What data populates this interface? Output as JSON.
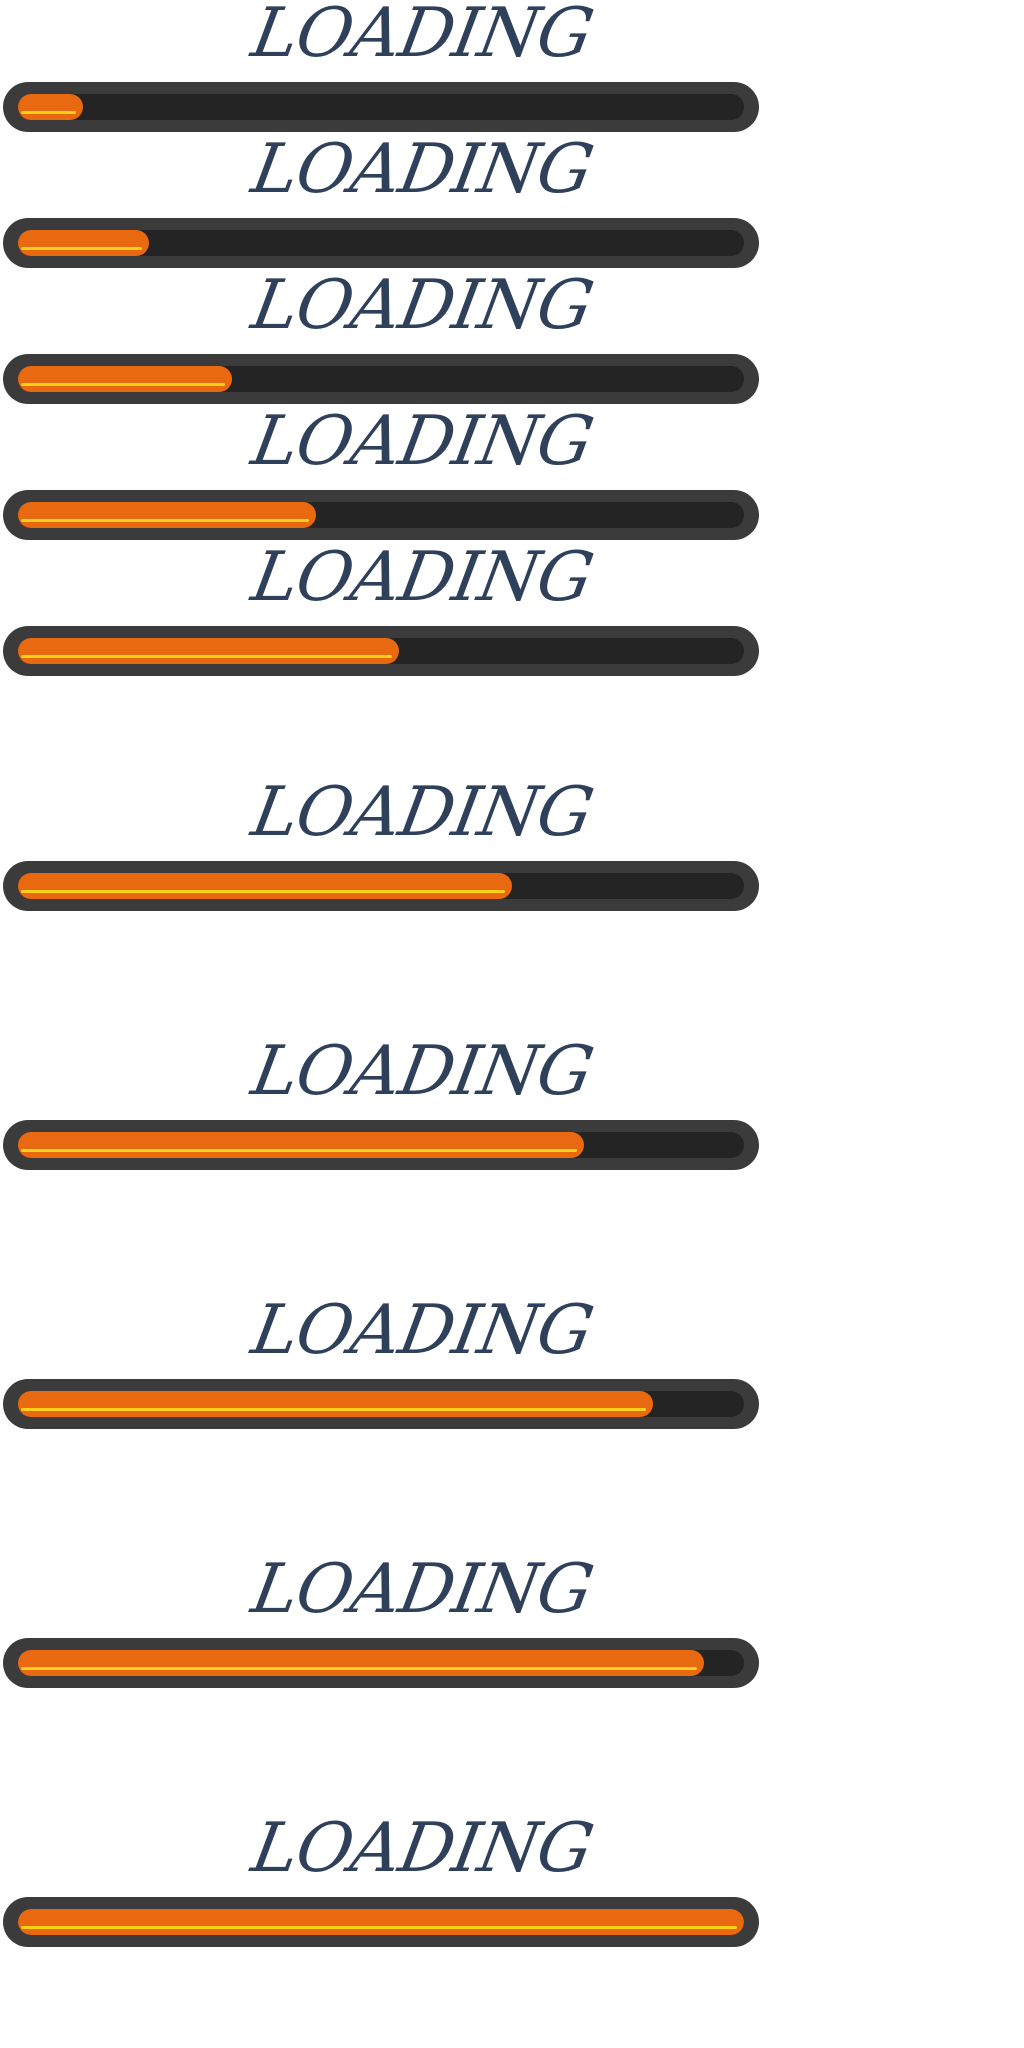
{
  "loaders": [
    {
      "label": "LOADING",
      "progress": 0.09
    },
    {
      "label": "LOADING",
      "progress": 0.18
    },
    {
      "label": "LOADING",
      "progress": 0.295
    },
    {
      "label": "LOADING",
      "progress": 0.41
    },
    {
      "label": "LOADING",
      "progress": 0.525
    },
    {
      "label": "LOADING",
      "progress": 0.68
    },
    {
      "label": "LOADING",
      "progress": 0.78
    },
    {
      "label": "LOADING",
      "progress": 0.875
    },
    {
      "label": "LOADING",
      "progress": 0.945
    },
    {
      "label": "LOADING",
      "progress": 1.0
    }
  ],
  "colors": {
    "text": "#2f405b",
    "track_outer": "#3b3b3b",
    "track_inner": "#242424",
    "fill": "#e8690f",
    "highlight": "#ffd11a"
  }
}
